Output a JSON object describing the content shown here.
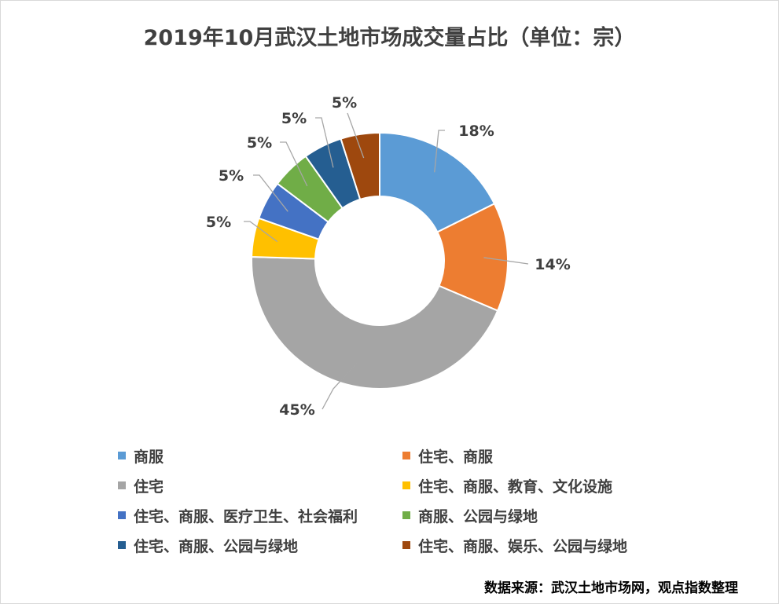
{
  "chart_data": {
    "type": "pie",
    "variant": "donut",
    "title": "2019年10月武汉土地市场成交量占比（单位：宗）",
    "legend_position": "bottom",
    "slices": [
      {
        "label": "商服",
        "value": 18,
        "display": "18%",
        "color": "#5B9BD5"
      },
      {
        "label": "住宅、商服",
        "value": 14,
        "display": "14%",
        "color": "#ED7D31"
      },
      {
        "label": "住宅",
        "value": 45,
        "display": "45%",
        "color": "#A5A5A5"
      },
      {
        "label": "住宅、商服、教育、文化设施",
        "value": 5,
        "display": "5%",
        "color": "#FFC000"
      },
      {
        "label": "住宅、商服、医疗卫生、社会福利",
        "value": 5,
        "display": "5%",
        "color": "#4472C4"
      },
      {
        "label": "商服、公园与绿地",
        "value": 5,
        "display": "5%",
        "color": "#70AD47"
      },
      {
        "label": "住宅、商服、公园与绿地",
        "value": 5,
        "display": "5%",
        "color": "#255E91"
      },
      {
        "label": "住宅、商服、娱乐、公园与绿地",
        "value": 5,
        "display": "5%",
        "color": "#9E480E"
      }
    ]
  },
  "source": "数据来源：武汉土地市场网，观点指数整理"
}
